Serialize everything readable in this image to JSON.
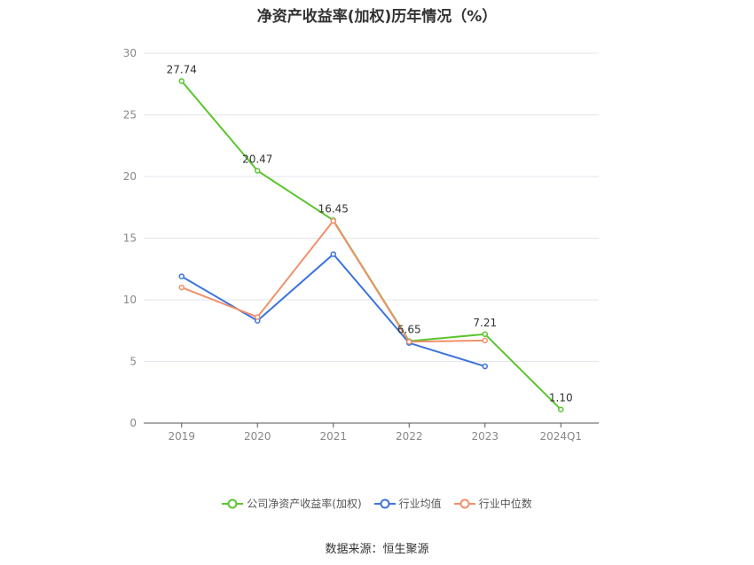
{
  "chart_data": {
    "type": "line",
    "title": "净资产收益率(加权)历年情况（%）",
    "categories": [
      "2019",
      "2020",
      "2021",
      "2022",
      "2023",
      "2024Q1"
    ],
    "ylim": [
      0,
      30
    ],
    "yticks": [
      0,
      5,
      10,
      15,
      20,
      25,
      30
    ],
    "grid": true,
    "legend_position": "bottom",
    "series": [
      {
        "name": "公司净资产收益率(加权)",
        "color": "#5bc52e",
        "values": [
          27.74,
          20.47,
          16.45,
          6.65,
          7.21,
          1.1
        ],
        "labels": [
          "27.74",
          "20.47",
          "16.45",
          "6.65",
          "7.21",
          "1.10"
        ]
      },
      {
        "name": "行业均值",
        "color": "#3d74dd",
        "values": [
          11.9,
          8.3,
          13.7,
          6.5,
          4.6,
          null
        ]
      },
      {
        "name": "行业中位数",
        "color": "#f0916a",
        "values": [
          11.0,
          8.6,
          16.4,
          6.6,
          6.7,
          null
        ]
      }
    ]
  },
  "source": "数据来源：恒生聚源"
}
